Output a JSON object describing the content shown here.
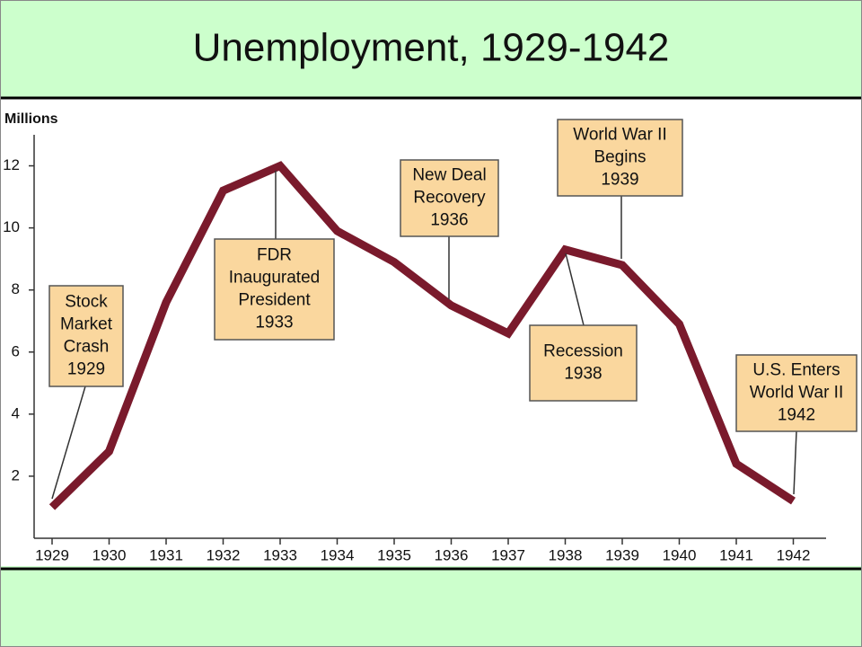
{
  "chart_data": {
    "type": "line",
    "title": "Unemployment, 1929-1942",
    "y_label": "Millions",
    "categories": [
      "1929",
      "1930",
      "1931",
      "1932",
      "1933",
      "1934",
      "1935",
      "1936",
      "1937",
      "1938",
      "1939",
      "1940",
      "1941",
      "1942"
    ],
    "values": [
      1.0,
      2.8,
      7.6,
      11.2,
      12.0,
      9.9,
      8.9,
      7.5,
      6.6,
      9.3,
      8.8,
      6.9,
      2.4,
      1.2
    ],
    "color": "#7a1a2c",
    "ylim": [
      0,
      13
    ],
    "yticks": [
      2,
      4,
      6,
      8,
      10,
      12
    ],
    "annotations": [
      {
        "lines": [
          "Stock",
          "Market",
          "Crash",
          "1929"
        ]
      },
      {
        "lines": [
          "FDR",
          "Inaugurated",
          "President",
          "1933"
        ]
      },
      {
        "lines": [
          "New Deal",
          "Recovery",
          "1936"
        ]
      },
      {
        "lines": [
          "Recession",
          "1938"
        ]
      },
      {
        "lines": [
          "World War II",
          "Begins",
          "1939"
        ]
      },
      {
        "lines": [
          "U.S. Enters",
          "World War II",
          "1942"
        ]
      }
    ]
  }
}
